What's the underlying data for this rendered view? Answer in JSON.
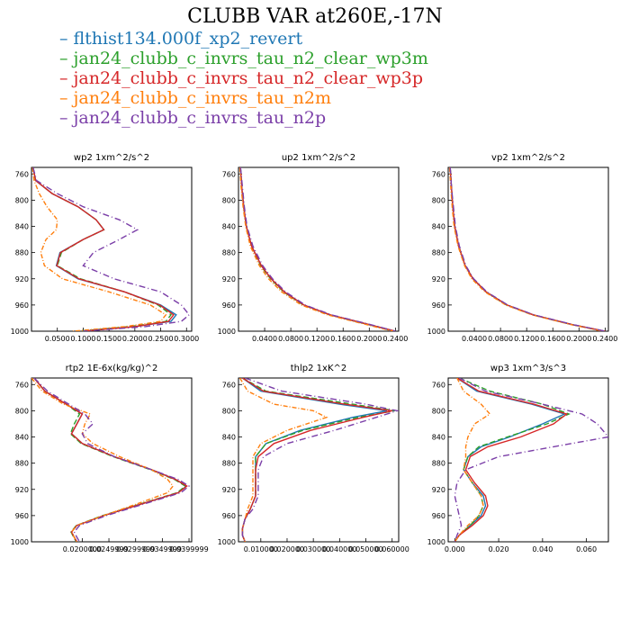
{
  "title": "CLUBB VAR at260E,-17N",
  "legend": [
    {
      "name": "flthist134.000f_xp2_revert",
      "color": "#1f77b4"
    },
    {
      "name": "jan24_clubb_c_invrs_tau_n2_clear_wp3m",
      "color": "#2ca02c"
    },
    {
      "name": "jan24_clubb_c_invrs_tau_n2_clear_wp3p",
      "color": "#d62728"
    },
    {
      "name": "jan24_clubb_c_invrs_tau_n2m",
      "color": "#ff7f0e"
    },
    {
      "name": "jan24_clubb_c_invrs_tau_n2p",
      "color": "#7b3fa8"
    }
  ],
  "chart_data": [
    {
      "type": "line",
      "title": "wp2  1xm^2/s^2",
      "xlim": [
        0,
        0.31
      ],
      "ylim": [
        1000,
        750
      ],
      "xticks": [
        0.05,
        0.1,
        0.15,
        0.2,
        0.25,
        0.3
      ],
      "xticklabels": [
        "0.0500",
        "0.1000",
        "0.1500",
        "0.2000",
        "0.2500",
        "0.3000"
      ],
      "yticks": [
        760,
        800,
        840,
        880,
        920,
        960,
        1000
      ],
      "y": [
        750,
        770,
        790,
        810,
        830,
        845,
        860,
        880,
        900,
        920,
        940,
        960,
        975,
        985,
        993,
        1000
      ],
      "series": [
        {
          "x": [
            0.003,
            0.008,
            0.04,
            0.09,
            0.125,
            0.14,
            0.1,
            0.055,
            0.048,
            0.09,
            0.18,
            0.25,
            0.28,
            0.27,
            0.2,
            0.1
          ]
        },
        {
          "x": [
            0.003,
            0.008,
            0.04,
            0.09,
            0.125,
            0.14,
            0.1,
            0.058,
            0.05,
            0.095,
            0.18,
            0.245,
            0.27,
            0.26,
            0.19,
            0.09
          ]
        },
        {
          "x": [
            0.003,
            0.008,
            0.04,
            0.09,
            0.125,
            0.14,
            0.1,
            0.056,
            0.049,
            0.092,
            0.18,
            0.248,
            0.275,
            0.265,
            0.2,
            0.1
          ]
        },
        {
          "x": [
            0.002,
            0.005,
            0.015,
            0.03,
            0.05,
            0.048,
            0.028,
            0.018,
            0.025,
            0.06,
            0.15,
            0.23,
            0.26,
            0.25,
            0.18,
            0.08
          ]
        },
        {
          "x": [
            0.003,
            0.01,
            0.05,
            0.1,
            0.17,
            0.205,
            0.17,
            0.12,
            0.1,
            0.16,
            0.25,
            0.29,
            0.305,
            0.29,
            0.22,
            0.1
          ]
        }
      ]
    },
    {
      "type": "line",
      "title": "up2  1xm^2/s^2",
      "xlim": [
        0,
        0.245
      ],
      "ylim": [
        1000,
        750
      ],
      "xticks": [
        0.04,
        0.08,
        0.12,
        0.16,
        0.2,
        0.24
      ],
      "xticklabels": [
        "0.0400",
        "0.0800",
        "0.1200",
        "0.1600",
        "0.2000",
        "0.2400"
      ],
      "yticks": [
        760,
        800,
        840,
        880,
        920,
        960,
        1000
      ],
      "y": [
        750,
        780,
        810,
        840,
        870,
        900,
        920,
        940,
        960,
        975,
        990,
        1000
      ],
      "series": [
        {
          "x": [
            0.003,
            0.005,
            0.008,
            0.012,
            0.02,
            0.035,
            0.05,
            0.07,
            0.1,
            0.14,
            0.2,
            0.24
          ]
        },
        {
          "x": [
            0.003,
            0.005,
            0.008,
            0.012,
            0.02,
            0.034,
            0.049,
            0.069,
            0.099,
            0.139,
            0.199,
            0.238
          ]
        },
        {
          "x": [
            0.003,
            0.005,
            0.008,
            0.012,
            0.02,
            0.035,
            0.05,
            0.07,
            0.1,
            0.14,
            0.2,
            0.24
          ]
        },
        {
          "x": [
            0.002,
            0.004,
            0.007,
            0.011,
            0.018,
            0.032,
            0.046,
            0.066,
            0.096,
            0.136,
            0.196,
            0.236
          ]
        },
        {
          "x": [
            0.003,
            0.006,
            0.009,
            0.013,
            0.022,
            0.037,
            0.052,
            0.072,
            0.102,
            0.142,
            0.202,
            0.24
          ]
        }
      ]
    },
    {
      "type": "line",
      "title": "vp2  1xm^2/s^2",
      "xlim": [
        0,
        0.245
      ],
      "ylim": [
        1000,
        750
      ],
      "xticks": [
        0.04,
        0.08,
        0.12,
        0.16,
        0.2,
        0.24
      ],
      "xticklabels": [
        "0.0400",
        "0.0800",
        "0.1200",
        "0.1600",
        "0.2000",
        "0.2400"
      ],
      "yticks": [
        760,
        800,
        840,
        880,
        920,
        960,
        1000
      ],
      "y": [
        750,
        780,
        810,
        840,
        870,
        900,
        920,
        940,
        960,
        975,
        990,
        1000
      ],
      "series": [
        {
          "x": [
            0.003,
            0.005,
            0.007,
            0.01,
            0.016,
            0.026,
            0.038,
            0.058,
            0.09,
            0.13,
            0.19,
            0.24
          ]
        },
        {
          "x": [
            0.003,
            0.005,
            0.007,
            0.01,
            0.016,
            0.026,
            0.038,
            0.058,
            0.089,
            0.129,
            0.189,
            0.238
          ]
        },
        {
          "x": [
            0.003,
            0.005,
            0.007,
            0.01,
            0.016,
            0.026,
            0.038,
            0.058,
            0.09,
            0.13,
            0.19,
            0.24
          ]
        },
        {
          "x": [
            0.002,
            0.004,
            0.006,
            0.009,
            0.015,
            0.025,
            0.036,
            0.056,
            0.088,
            0.128,
            0.188,
            0.236
          ]
        },
        {
          "x": [
            0.003,
            0.005,
            0.008,
            0.011,
            0.017,
            0.027,
            0.039,
            0.059,
            0.091,
            0.131,
            0.191,
            0.24
          ]
        }
      ]
    },
    {
      "type": "line",
      "title": "rtp2  1E-6x(kg/kg)^2",
      "xlim": [
        0.0105,
        0.0405
      ],
      "ylim": [
        1000,
        750
      ],
      "xticks": [
        0.02,
        0.025,
        0.03,
        0.035,
        0.04
      ],
      "xticklabels": [
        "0.0200000",
        "0.0249999",
        "0.0299999",
        "0.0349999",
        "0.0399999"
      ],
      "yticks": [
        760,
        800,
        840,
        880,
        920,
        960,
        1000
      ],
      "y": [
        750,
        770,
        790,
        805,
        820,
        835,
        850,
        870,
        890,
        905,
        915,
        925,
        940,
        960,
        975,
        985,
        993,
        1000
      ],
      "series": [
        {
          "x": [
            0.011,
            0.013,
            0.017,
            0.02,
            0.019,
            0.018,
            0.02,
            0.026,
            0.033,
            0.0375,
            0.0395,
            0.038,
            0.032,
            0.024,
            0.019,
            0.018,
            0.0185,
            0.019
          ]
        },
        {
          "x": [
            0.011,
            0.013,
            0.017,
            0.0195,
            0.0185,
            0.0178,
            0.0198,
            0.0258,
            0.0328,
            0.0373,
            0.0393,
            0.0378,
            0.0318,
            0.0238,
            0.0189,
            0.0179,
            0.0184,
            0.0189
          ]
        },
        {
          "x": [
            0.011,
            0.013,
            0.017,
            0.02,
            0.019,
            0.018,
            0.02,
            0.026,
            0.033,
            0.0375,
            0.0396,
            0.038,
            0.032,
            0.024,
            0.019,
            0.018,
            0.0185,
            0.019
          ]
        },
        {
          "x": [
            0.0105,
            0.0125,
            0.0165,
            0.0215,
            0.0205,
            0.02,
            0.022,
            0.027,
            0.033,
            0.036,
            0.037,
            0.036,
            0.031,
            0.024,
            0.019,
            0.018,
            0.0185,
            0.019
          ]
        },
        {
          "x": [
            0.011,
            0.0135,
            0.0175,
            0.0205,
            0.022,
            0.02,
            0.021,
            0.026,
            0.033,
            0.038,
            0.04,
            0.0385,
            0.0325,
            0.0245,
            0.0195,
            0.0185,
            0.019,
            0.0195
          ]
        }
      ]
    },
    {
      "type": "line",
      "title": "thlp2  1xK^2",
      "xlim": [
        0.0015,
        0.0625
      ],
      "ylim": [
        1000,
        750
      ],
      "xticks": [
        0.01,
        0.02,
        0.03,
        0.04,
        0.05,
        0.06
      ],
      "xticklabels": [
        "0.010000",
        "0.020000",
        "0.030000",
        "0.040000",
        "0.050000",
        "0.060000"
      ],
      "yticks": [
        760,
        800,
        840,
        880,
        920,
        960,
        1000
      ],
      "y": [
        750,
        770,
        790,
        800,
        810,
        830,
        850,
        870,
        890,
        910,
        930,
        950,
        965,
        980,
        990,
        1000
      ],
      "series": [
        {
          "x": [
            0.003,
            0.01,
            0.04,
            0.058,
            0.045,
            0.025,
            0.012,
            0.008,
            0.008,
            0.008,
            0.008,
            0.006,
            0.004,
            0.003,
            0.003,
            0.004
          ]
        },
        {
          "x": [
            0.003,
            0.012,
            0.045,
            0.061,
            0.047,
            0.026,
            0.012,
            0.008,
            0.008,
            0.008,
            0.008,
            0.006,
            0.004,
            0.003,
            0.003,
            0.004
          ]
        },
        {
          "x": [
            0.003,
            0.011,
            0.042,
            0.06,
            0.049,
            0.029,
            0.015,
            0.009,
            0.008,
            0.008,
            0.008,
            0.006,
            0.004,
            0.003,
            0.003,
            0.004
          ]
        },
        {
          "x": [
            0.002,
            0.005,
            0.015,
            0.03,
            0.035,
            0.02,
            0.01,
            0.007,
            0.007,
            0.007,
            0.007,
            0.005,
            0.004,
            0.003,
            0.003,
            0.004
          ]
        },
        {
          "x": [
            0.004,
            0.018,
            0.05,
            0.062,
            0.054,
            0.038,
            0.02,
            0.011,
            0.009,
            0.009,
            0.009,
            0.007,
            0.004,
            0.003,
            0.003,
            0.004
          ]
        }
      ]
    },
    {
      "type": "line",
      "title": "wp3  1xm^3/s^3",
      "xlim": [
        -0.003,
        0.07
      ],
      "ylim": [
        1000,
        750
      ],
      "xticks": [
        0,
        0.02,
        0.04,
        0.06
      ],
      "xticklabels": [
        "0.000",
        "0.020",
        "0.040",
        "0.060"
      ],
      "yticks": [
        760,
        800,
        840,
        880,
        920,
        960,
        1000
      ],
      "y": [
        750,
        770,
        790,
        805,
        820,
        840,
        855,
        870,
        890,
        910,
        930,
        945,
        960,
        975,
        990,
        1000
      ],
      "series": [
        {
          "x": [
            0.001,
            0.01,
            0.035,
            0.05,
            0.04,
            0.025,
            0.012,
            0.006,
            0.004,
            0.008,
            0.013,
            0.014,
            0.012,
            0.007,
            0.002,
            0.0
          ]
        },
        {
          "x": [
            0.002,
            0.016,
            0.04,
            0.052,
            0.042,
            0.024,
            0.011,
            0.006,
            0.004,
            0.008,
            0.012,
            0.013,
            0.011,
            0.007,
            0.002,
            0.0
          ]
        },
        {
          "x": [
            0.001,
            0.011,
            0.036,
            0.051,
            0.045,
            0.03,
            0.015,
            0.007,
            0.005,
            0.009,
            0.014,
            0.015,
            0.013,
            0.008,
            0.002,
            0.0
          ]
        },
        {
          "x": [
            0.001,
            0.004,
            0.012,
            0.016,
            0.009,
            0.006,
            0.005,
            0.005,
            0.004,
            0.008,
            0.012,
            0.013,
            0.011,
            0.006,
            0.002,
            0.0
          ]
        },
        {
          "x": [
            0.002,
            0.014,
            0.04,
            0.058,
            0.065,
            0.07,
            0.045,
            0.02,
            0.005,
            0.001,
            0.0,
            0.001,
            0.002,
            0.003,
            0.001,
            0.0
          ]
        }
      ]
    }
  ]
}
